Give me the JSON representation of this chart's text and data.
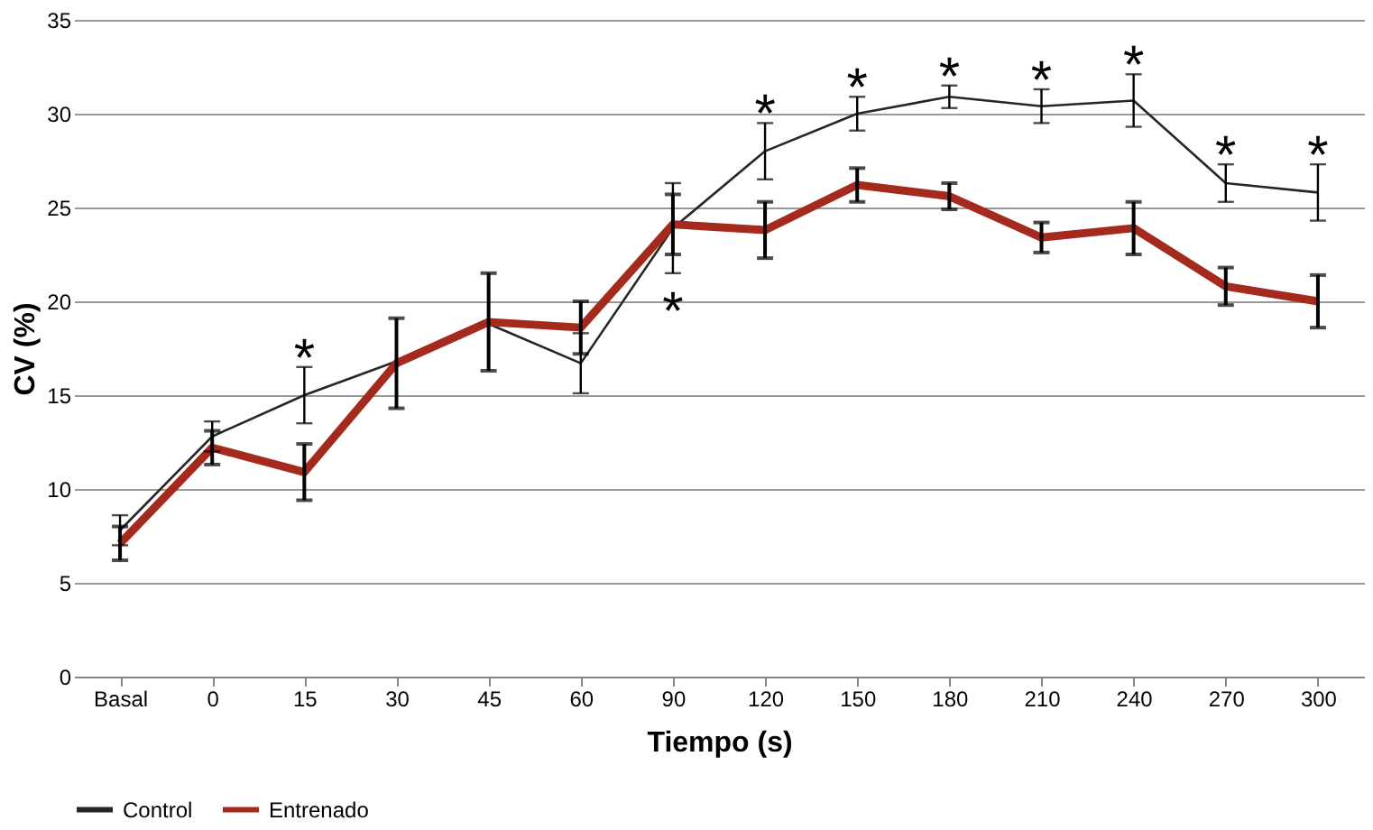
{
  "chart_data": {
    "type": "line",
    "xlabel": "Tiempo (s)",
    "ylabel": "CV (%)",
    "categories": [
      "Basal",
      "0",
      "15",
      "30",
      "45",
      "60",
      "90",
      "120",
      "150",
      "180",
      "210",
      "240",
      "270",
      "300"
    ],
    "series": [
      {
        "name": "Control",
        "color": "#262626",
        "values": [
          7.8,
          12.8,
          15.0,
          16.8,
          18.8,
          16.7,
          23.9,
          28.0,
          30.0,
          30.9,
          30.4,
          30.7,
          26.3,
          25.8
        ],
        "errors": [
          0.8,
          0.8,
          1.5,
          null,
          null,
          1.6,
          2.4,
          1.5,
          0.9,
          0.6,
          0.9,
          1.4,
          1.0,
          1.5
        ]
      },
      {
        "name": "Entrenado",
        "color": "#a52a1e",
        "values": [
          7.1,
          12.2,
          10.9,
          16.7,
          18.9,
          18.6,
          24.1,
          23.8,
          26.2,
          25.6,
          23.4,
          23.9,
          20.8,
          20.0
        ],
        "errors": [
          0.9,
          0.9,
          1.5,
          2.4,
          2.6,
          1.4,
          1.6,
          1.5,
          0.9,
          0.7,
          0.8,
          1.4,
          1.0,
          1.4
        ]
      }
    ],
    "ylim": [
      0,
      35
    ],
    "yticks": [
      0,
      5,
      10,
      15,
      20,
      25,
      30,
      35
    ],
    "grid": "y",
    "legend": "bottom",
    "marker": "none",
    "line_style": "solid",
    "annotations": [
      {
        "text": "*",
        "x": "15",
        "y": 16.5
      },
      {
        "text": "*",
        "x": "90",
        "y": 21.5
      },
      {
        "text": "*",
        "x": "120",
        "y": 29.5
      },
      {
        "text": "*",
        "x": "150",
        "y": 30.9
      },
      {
        "text": "*",
        "x": "180",
        "y": 31.5
      },
      {
        "text": "*",
        "x": "210",
        "y": 31.3
      },
      {
        "text": "*",
        "x": "240",
        "y": 32.1
      },
      {
        "text": "*",
        "x": "270",
        "y": 27.3
      },
      {
        "text": "*",
        "x": "300",
        "y": 27.3
      }
    ]
  }
}
